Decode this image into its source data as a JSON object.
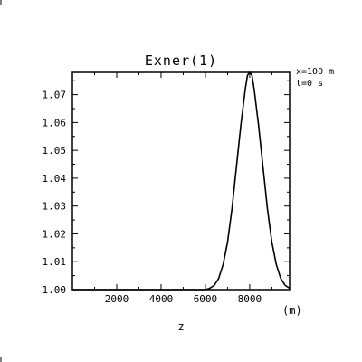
{
  "chart_data": {
    "type": "line",
    "title": "Exner(1)",
    "xlabel": "z",
    "xunit": "(m)",
    "ylabel": "",
    "annotations": [
      "x=100 m",
      "t=0 s"
    ],
    "xlim": [
      0,
      9800
    ],
    "ylim": [
      1.0,
      1.078
    ],
    "xticks": [
      2000,
      4000,
      6000,
      8000
    ],
    "xtick_labels": [
      "2000",
      "4000",
      "6000",
      "8000"
    ],
    "yticks": [
      1.0,
      1.01,
      1.02,
      1.03,
      1.04,
      1.05,
      1.06,
      1.07
    ],
    "ytick_labels": [
      "1.00",
      "1.01",
      "1.02",
      "1.03",
      "1.04",
      "1.05",
      "1.06",
      "1.07"
    ],
    "grid": false,
    "series": [
      {
        "x": [
          0,
          6000,
          6200,
          6400,
          6600,
          6800,
          7000,
          7200,
          7400,
          7600,
          7800,
          7900,
          8000,
          8100,
          8200,
          8400,
          8600,
          8800,
          9000,
          9200,
          9400,
          9600,
          9800
        ],
        "y": [
          1.0,
          1.0,
          1.0005,
          1.0015,
          1.004,
          1.009,
          1.017,
          1.029,
          1.044,
          1.059,
          1.072,
          1.077,
          1.078,
          1.077,
          1.072,
          1.059,
          1.044,
          1.029,
          1.017,
          1.009,
          1.004,
          1.0015,
          1.0005
        ]
      }
    ]
  }
}
